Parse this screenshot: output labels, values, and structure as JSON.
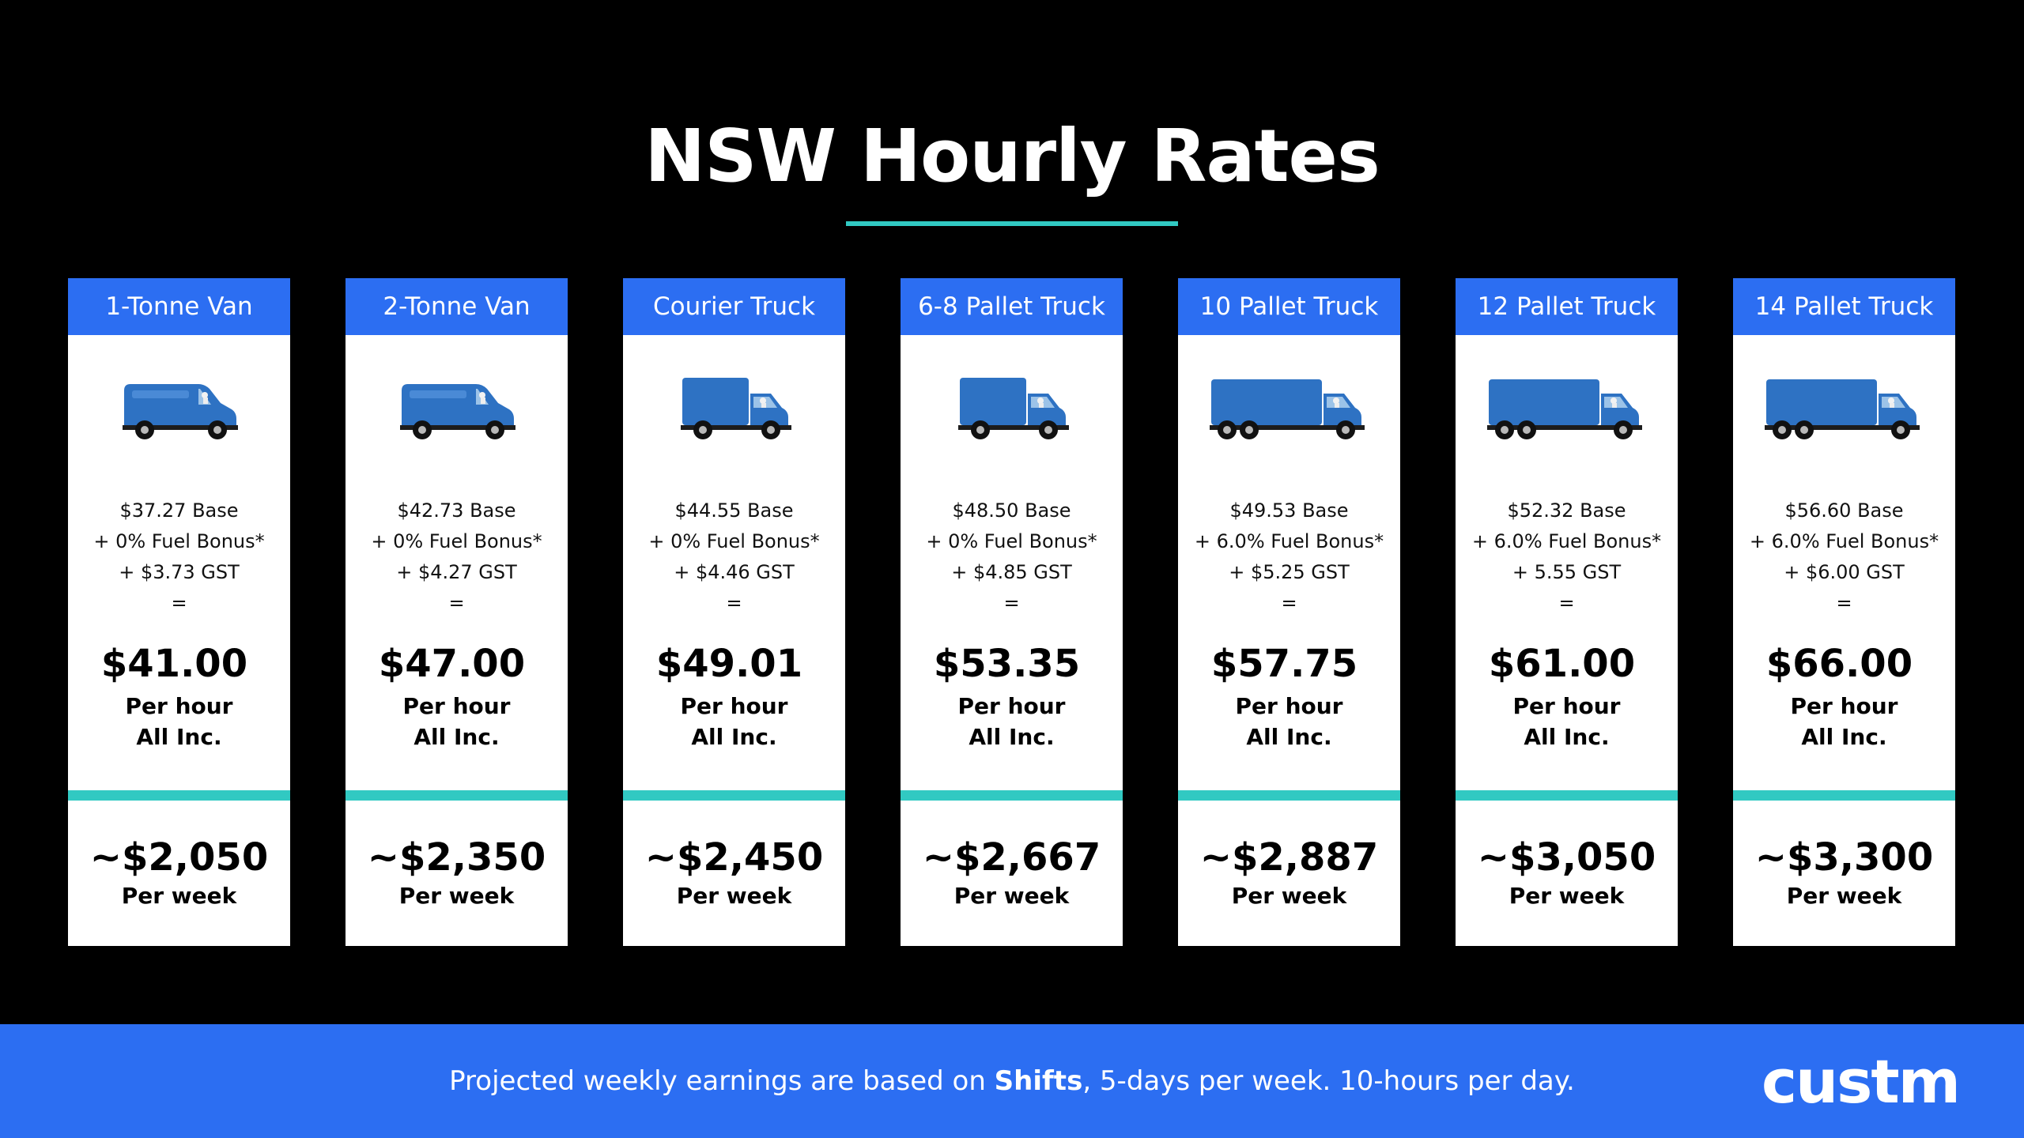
{
  "title": "NSW Hourly Rates",
  "colors": {
    "background": "#000000",
    "header_blue": "#2c6ef2",
    "accent_teal": "#31c9c2",
    "vehicle_blue": "#2e72c3",
    "card": "#ffffff"
  },
  "cards": [
    {
      "name": "1-Tonne Van",
      "icon": "van-icon",
      "base": "$37.27 Base",
      "fuel": "+ 0% Fuel Bonus*",
      "gst": "+ $3.73 GST",
      "equals": "=",
      "hourly": "$41.00",
      "per_hour": "Per hour",
      "all_inc": "All Inc.",
      "weekly": "~$2,050",
      "per_week": "Per week"
    },
    {
      "name": "2-Tonne Van",
      "icon": "van-icon",
      "base": "$42.73 Base",
      "fuel": "+ 0% Fuel Bonus*",
      "gst": "+ $4.27 GST",
      "equals": "=",
      "hourly": "$47.00",
      "per_hour": "Per hour",
      "all_inc": "All Inc.",
      "weekly": "~$2,350",
      "per_week": "Per week"
    },
    {
      "name": "Courier Truck",
      "icon": "box-truck-icon",
      "base": "$44.55 Base",
      "fuel": "+ 0% Fuel Bonus*",
      "gst": "+ $4.46 GST",
      "equals": "=",
      "hourly": "$49.01",
      "per_hour": "Per hour",
      "all_inc": "All Inc.",
      "weekly": "~$2,450",
      "per_week": "Per week"
    },
    {
      "name": "6-8 Pallet Truck",
      "icon": "box-truck-icon",
      "base": "$48.50 Base",
      "fuel": "+ 0% Fuel Bonus*",
      "gst": "+ $4.85 GST",
      "equals": "=",
      "hourly": "$53.35",
      "per_hour": "Per hour",
      "all_inc": "All Inc.",
      "weekly": "~$2,667",
      "per_week": "Per week"
    },
    {
      "name": "10 Pallet Truck",
      "icon": "large-truck-icon",
      "base": "$49.53 Base",
      "fuel": "+ 6.0% Fuel Bonus*",
      "gst": "+ $5.25 GST",
      "equals": "=",
      "hourly": "$57.75",
      "per_hour": "Per hour",
      "all_inc": "All Inc.",
      "weekly": "~$2,887",
      "per_week": "Per week"
    },
    {
      "name": "12 Pallet Truck",
      "icon": "large-truck-icon",
      "base": "$52.32 Base",
      "fuel": "+ 6.0% Fuel Bonus*",
      "gst": "+ 5.55 GST",
      "equals": "=",
      "hourly": "$61.00",
      "per_hour": "Per hour",
      "all_inc": "All Inc.",
      "weekly": "~$3,050",
      "per_week": "Per week"
    },
    {
      "name": "14 Pallet Truck",
      "icon": "large-truck-icon",
      "base": "$56.60 Base",
      "fuel": "+ 6.0% Fuel Bonus*",
      "gst": "+ $6.00 GST",
      "equals": "=",
      "hourly": "$66.00",
      "per_hour": "Per hour",
      "all_inc": "All Inc.",
      "weekly": "~$3,300",
      "per_week": "Per week"
    }
  ],
  "footer": {
    "note_before": "Projected weekly earnings are based on ",
    "note_bold": "Shifts",
    "note_after": ", 5-days per week. 10-hours per day.",
    "logo_text": "custm"
  }
}
